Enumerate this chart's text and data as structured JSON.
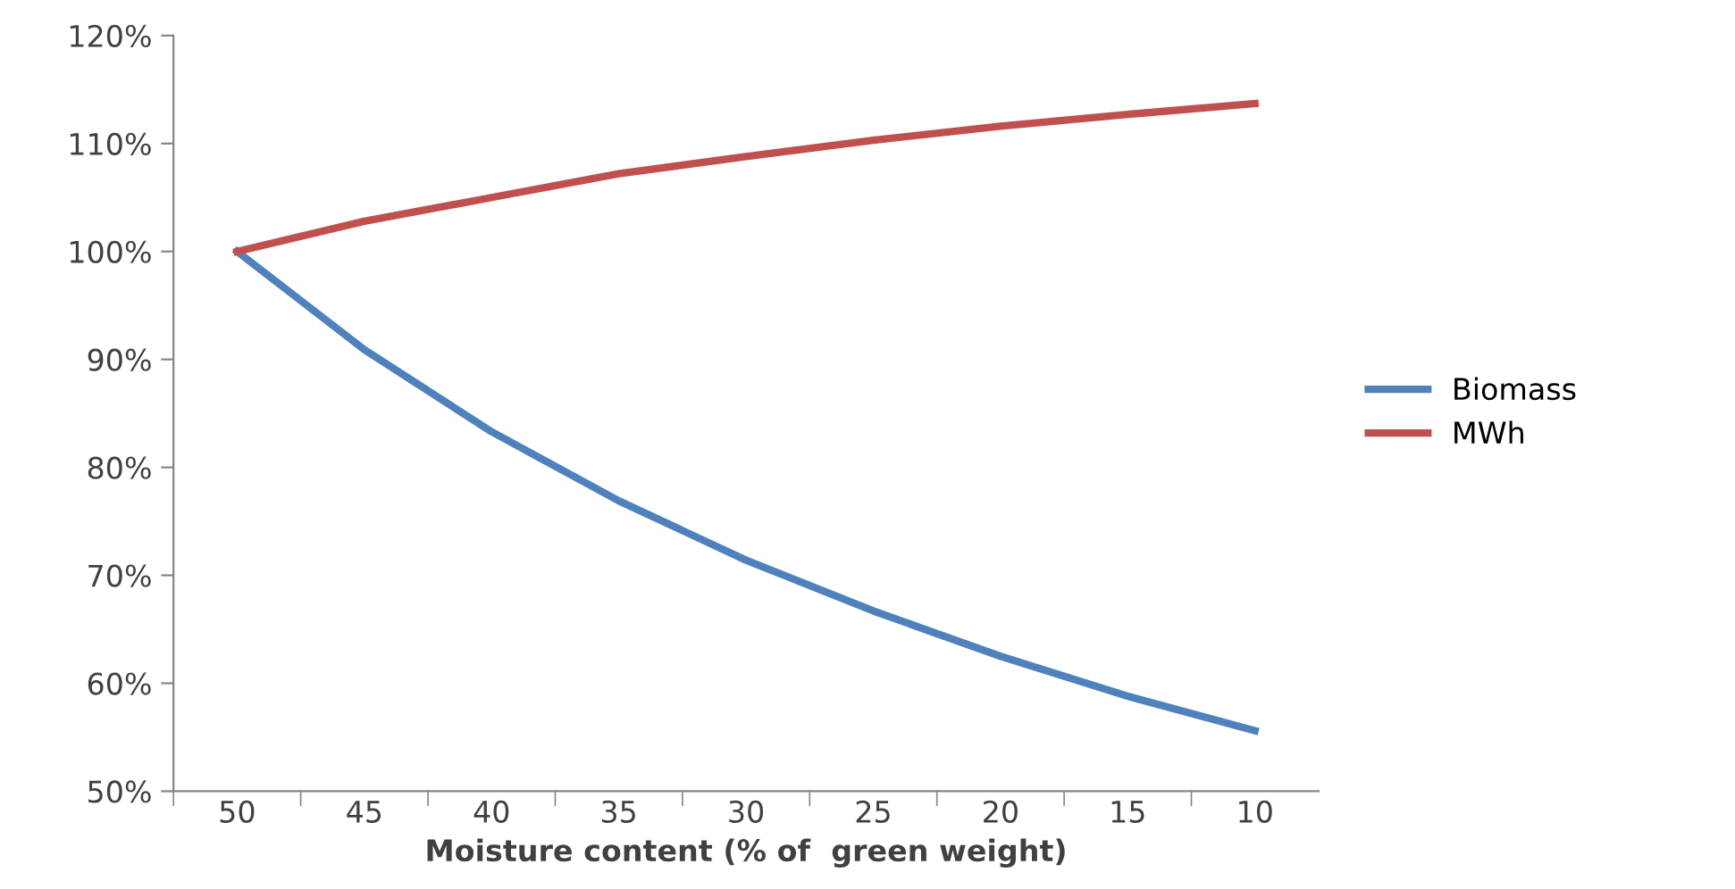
{
  "chart_data": {
    "type": "line",
    "xlabel": "Moisture content (% of  green weight)",
    "categories": [
      "50",
      "45",
      "40",
      "35",
      "30",
      "25",
      "20",
      "15",
      "10"
    ],
    "series": [
      {
        "name": "Biomass",
        "color": "#4f81bd",
        "values": [
          100,
          90.9,
          83.3,
          76.9,
          71.4,
          66.7,
          62.5,
          58.8,
          55.6
        ]
      },
      {
        "name": "MWh",
        "color": "#c0504d",
        "values": [
          100,
          102.8,
          105,
          107.2,
          108.8,
          110.3,
          111.6,
          112.7,
          113.7
        ]
      }
    ],
    "ylim": [
      50,
      120
    ],
    "yticks": [
      {
        "value": 50,
        "label": "50%"
      },
      {
        "value": 60,
        "label": "60%"
      },
      {
        "value": 70,
        "label": "70%"
      },
      {
        "value": 80,
        "label": "80%"
      },
      {
        "value": 90,
        "label": "90%"
      },
      {
        "value": 100,
        "label": "100%"
      },
      {
        "value": 110,
        "label": "110%"
      },
      {
        "value": 120,
        "label": "120%"
      }
    ],
    "grid": false,
    "legend": "right",
    "marker": "none",
    "line_style": "solid"
  }
}
